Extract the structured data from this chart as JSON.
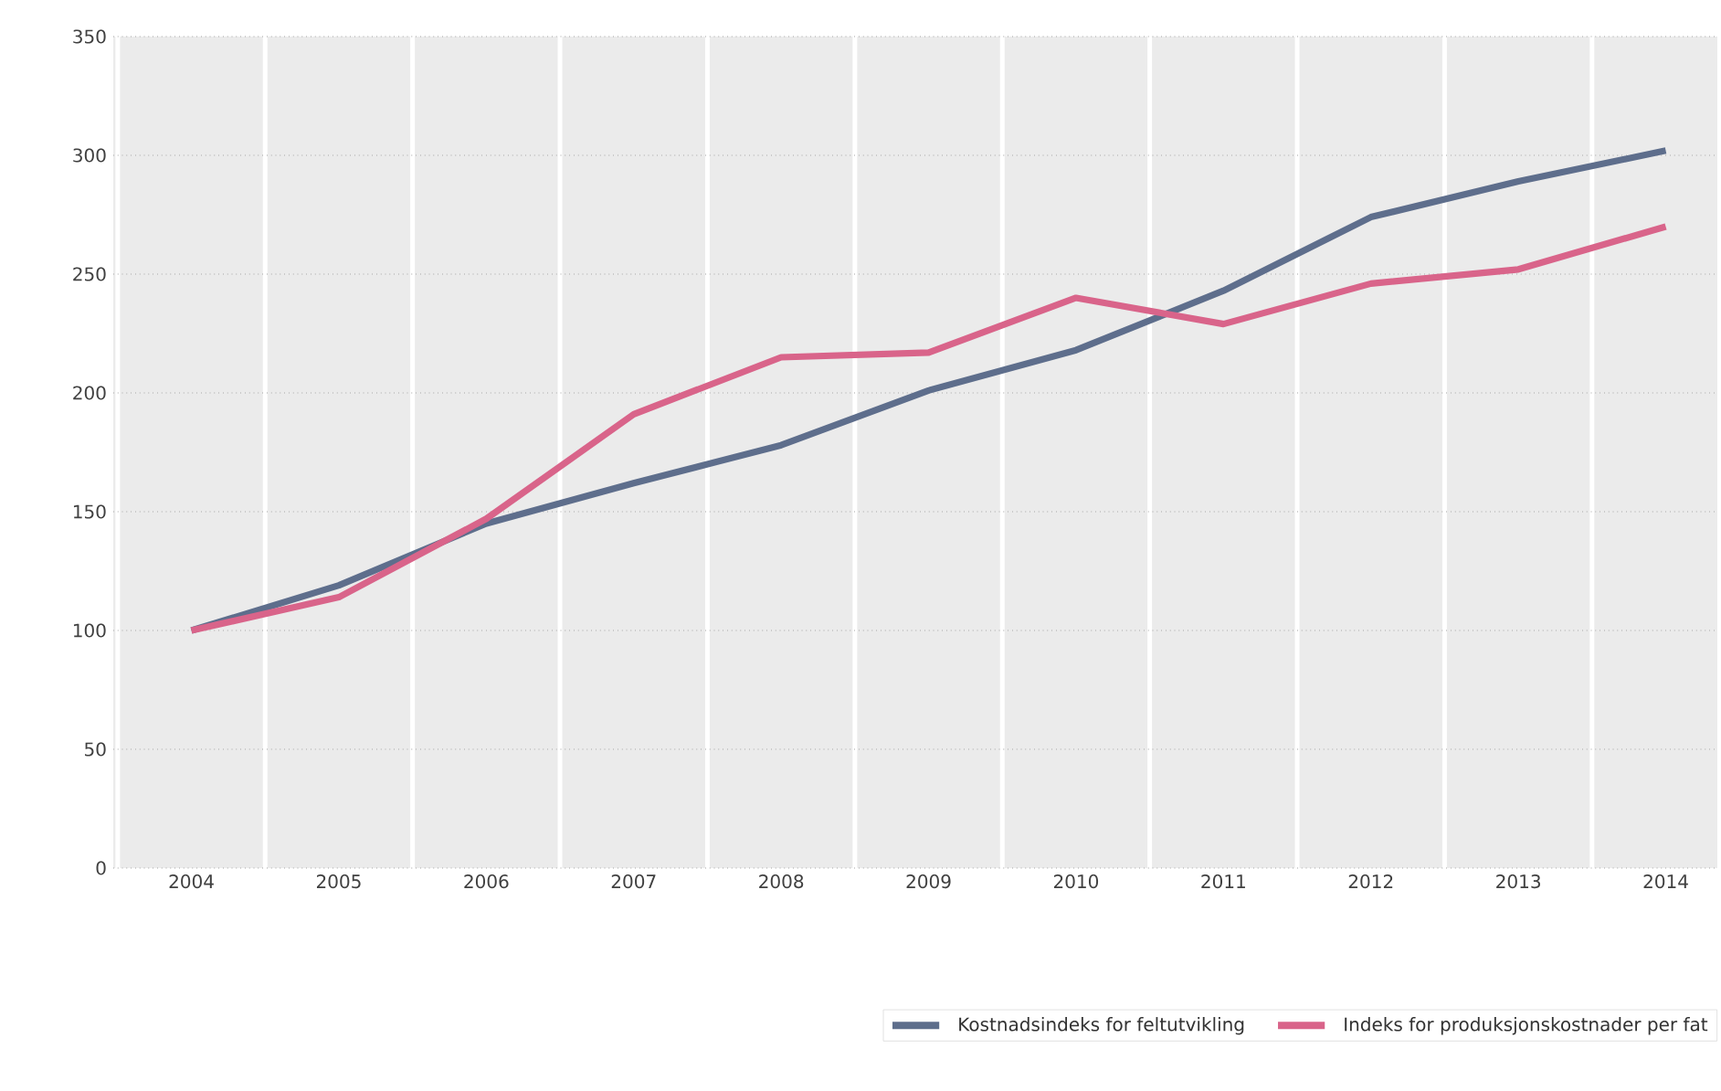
{
  "chart_data": {
    "type": "line",
    "categories": [
      "2004",
      "2005",
      "2006",
      "2007",
      "2008",
      "2009",
      "2010",
      "2011",
      "2012",
      "2013",
      "2014"
    ],
    "series": [
      {
        "name": "Kostnadsindeks for feltutvikling",
        "color": "#5e6e8c",
        "values": [
          100,
          119,
          145,
          162,
          178,
          201,
          218,
          243,
          274,
          289,
          302
        ]
      },
      {
        "name": "Indeks for produksjonskostnader per fat",
        "color": "#d9648a",
        "values": [
          100,
          114,
          147,
          191,
          215,
          217,
          240,
          229,
          246,
          252,
          270
        ]
      }
    ],
    "ylim": [
      0,
      350
    ],
    "yticks": [
      0,
      50,
      100,
      150,
      200,
      250,
      300,
      350
    ],
    "grid": true,
    "legend": "bottom right",
    "marker": "none",
    "line_style": "solid"
  }
}
